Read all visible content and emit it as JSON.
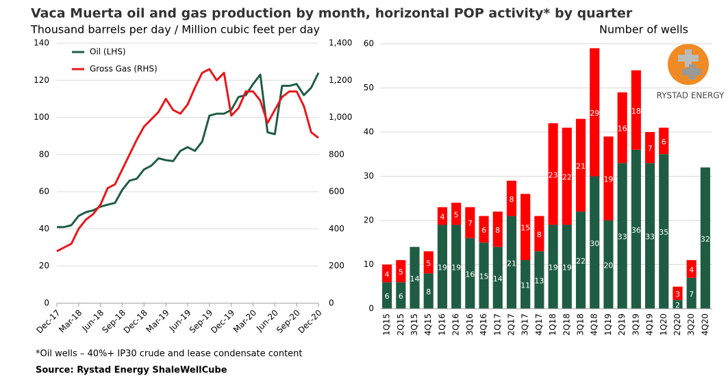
{
  "title": "Vaca Muerta oil and gas production by month, horizontal POP activity* by quarter",
  "footnote": "*Oil wells – 40%+ IP30 crude and lease condensate content",
  "source": "Source: Rystad Energy ShaleWellCube",
  "logo": "RYSTAD ENERGY",
  "chart_data": [
    {
      "type": "line",
      "subtitle": "Thousand barrels per day / Million cubic feet per day",
      "categories": [
        "Dec-17",
        null,
        null,
        "Mar-18",
        null,
        null,
        "Jun-18",
        null,
        null,
        "Sep-18",
        null,
        null,
        "Dec-18",
        null,
        null,
        "Mar-19",
        null,
        null,
        "Jun-19",
        null,
        null,
        "Sep-19",
        null,
        null,
        "Dec-19",
        null,
        null,
        "Mar-20",
        null,
        null,
        "Jun-20",
        null,
        null,
        "Sep-20",
        null,
        null,
        "Dec-20"
      ],
      "series": [
        {
          "name": "Oil (LHS)",
          "color": "#1f5c44",
          "values": [
            41,
            41,
            42,
            47,
            49,
            50,
            52,
            53,
            54,
            61,
            66,
            67,
            72,
            74,
            78,
            77,
            76.5,
            82,
            84,
            82,
            87,
            101,
            102,
            102,
            104,
            111,
            112,
            118,
            123,
            92,
            91,
            117,
            117,
            118,
            112,
            116,
            124
          ]
        },
        {
          "name": "Gross Gas (RHS)",
          "color": "#e8161b",
          "axis": "y2",
          "values": [
            280,
            300,
            320,
            400,
            450,
            480,
            530,
            620,
            640,
            720,
            800,
            880,
            950,
            990,
            1030,
            1100,
            1040,
            1020,
            1070,
            1160,
            1240,
            1260,
            1200,
            1240,
            1010,
            1050,
            1140,
            1140,
            1090,
            970,
            1040,
            1110,
            1140,
            1140,
            1060,
            920,
            890
          ]
        }
      ],
      "ylim": [
        0,
        140
      ],
      "yticks": [
        0,
        20,
        40,
        60,
        80,
        100,
        120,
        140
      ],
      "y2lim": [
        0,
        1400
      ],
      "y2ticks": [
        0,
        200,
        400,
        600,
        800,
        {
          "value": 1000,
          "label": "1,000"
        },
        {
          "value": 1200,
          "label": "1,200"
        },
        {
          "value": 1400,
          "label": "1,400"
        }
      ],
      "grid": true,
      "legend": "top-left"
    },
    {
      "type": "bar",
      "stacked": true,
      "ylabel": "Number of wells",
      "categories": [
        "1Q15",
        "2Q15",
        "3Q15",
        "4Q15",
        "1Q16",
        "2Q16",
        "3Q16",
        "4Q16",
        "1Q17",
        "2Q17",
        "3Q17",
        "4Q17",
        "1Q18",
        "2Q18",
        "3Q18",
        "4Q18",
        "1Q19",
        "2Q19",
        "3Q19",
        "4Q19",
        "1Q20",
        "2Q20",
        "3Q20",
        "4Q20"
      ],
      "series": [
        {
          "color": "#1f5c44",
          "values": [
            6,
            6,
            14,
            8,
            19,
            19,
            16,
            15,
            14,
            21,
            11,
            13,
            19,
            19,
            22,
            30,
            20,
            33,
            36,
            33,
            35,
            2,
            7,
            32
          ]
        },
        {
          "color": "#ff0000",
          "values": [
            4,
            5,
            null,
            5,
            4,
            5,
            7,
            6,
            8,
            8,
            15,
            8,
            23,
            22,
            21,
            29,
            19,
            16,
            18,
            7,
            6,
            3,
            4,
            null
          ]
        }
      ],
      "ylim": [
        0,
        60
      ],
      "yticks": [
        0,
        10,
        20,
        30,
        40,
        50,
        60
      ],
      "grid": true
    }
  ]
}
